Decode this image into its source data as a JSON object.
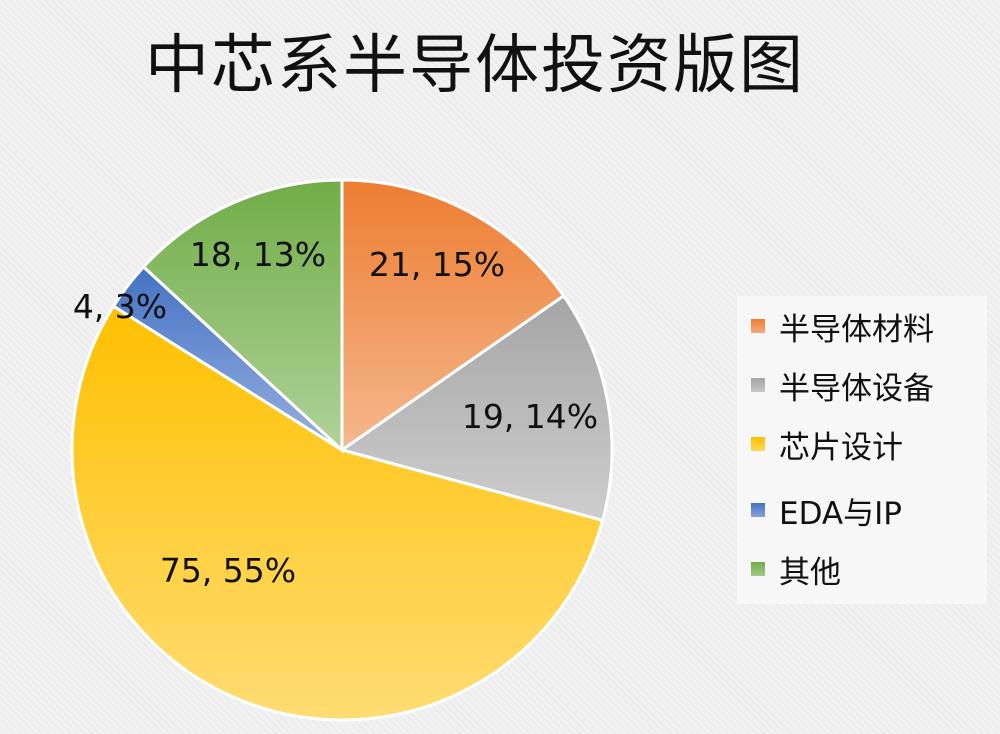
{
  "chart_data": {
    "type": "pie",
    "title": "中芯系半导体投资版图",
    "categories": [
      "半导体材料",
      "半导体设备",
      "芯片设计",
      "EDA与IP",
      "其他"
    ],
    "values": [
      21,
      19,
      75,
      4,
      18
    ],
    "percentages": [
      "15%",
      "14%",
      "55%",
      "3%",
      "13%"
    ],
    "data_labels": [
      "21, 15%",
      "19, 14%",
      "75, 55%",
      "4, 3%",
      "18, 13%"
    ],
    "colors": [
      "#ED7D31",
      "#A5A5A5",
      "#FFC000",
      "#4472C4",
      "#70AD47"
    ],
    "legend_position": "right",
    "start_angle": "12 o'clock",
    "direction": "clockwise"
  }
}
